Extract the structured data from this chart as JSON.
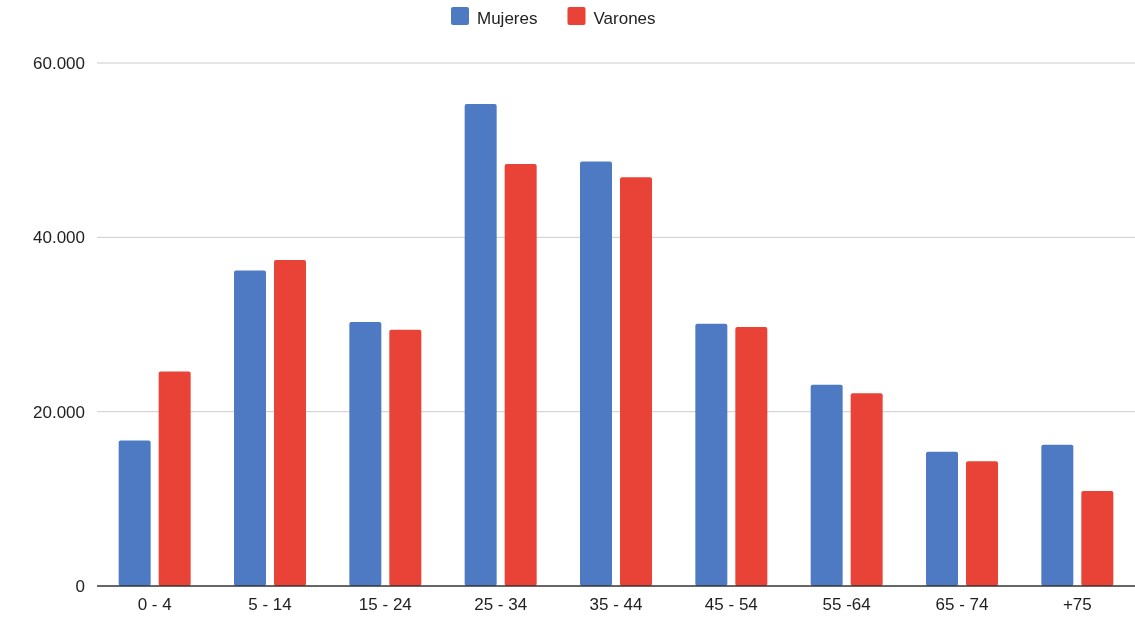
{
  "chart_data": {
    "type": "bar",
    "categories": [
      "0 - 4",
      "5 - 14",
      "15 - 24",
      "25 - 34",
      "35 - 44",
      "45 - 54",
      "55 -64",
      "65 - 74",
      "+75"
    ],
    "series": [
      {
        "name": "Mujeres",
        "color": "#4e7ac4",
        "values": [
          16700,
          36200,
          30300,
          55300,
          48700,
          30100,
          23100,
          15400,
          16200
        ]
      },
      {
        "name": "Varones",
        "color": "#e84336",
        "values": [
          24600,
          37400,
          29400,
          48400,
          46900,
          29700,
          22100,
          14300,
          10900
        ]
      }
    ],
    "ylim": [
      0,
      60000
    ],
    "yticks": [
      {
        "value": 0,
        "label": "0"
      },
      {
        "value": 20000,
        "label": "20.000"
      },
      {
        "value": 40000,
        "label": "40.000"
      },
      {
        "value": 60000,
        "label": "60.000"
      }
    ],
    "grid": "y",
    "legend": "top"
  }
}
